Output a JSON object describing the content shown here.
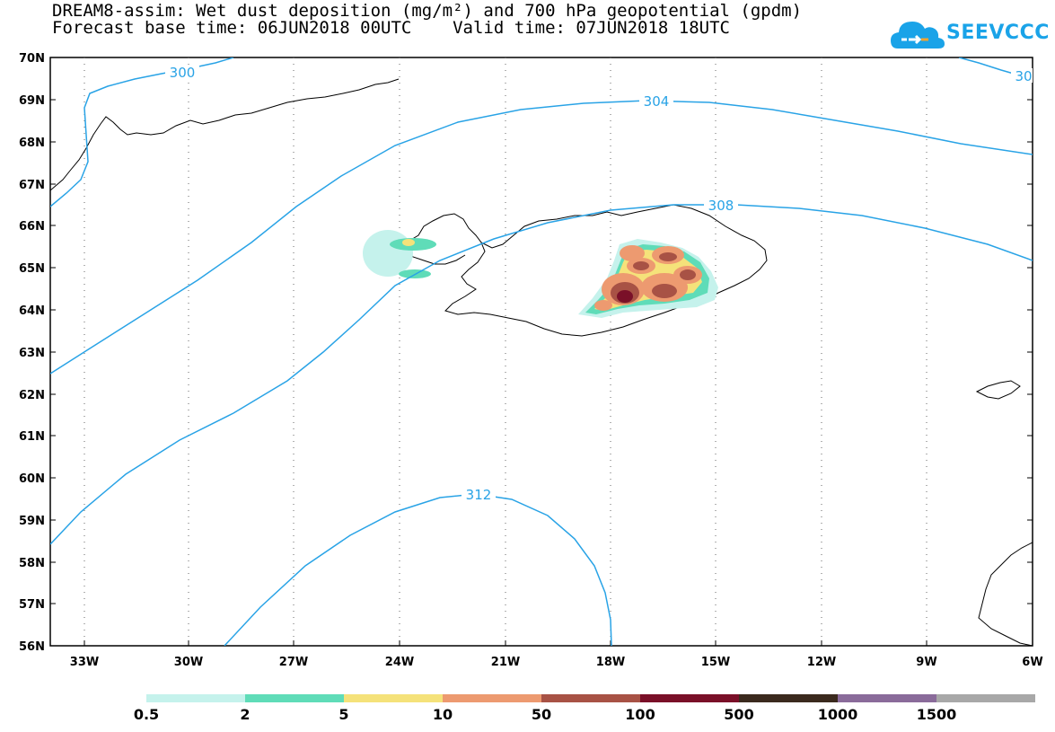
{
  "title": {
    "line1": "DREAM8-assim: Wet dust deposition (mg/m²) and 700 hPa geopotential (gpdm)",
    "line2": "Forecast base time: 06JUN2018 00UTC    Valid time: 07JUN2018 18UTC"
  },
  "logo": {
    "text": "SEEVCCC",
    "icon": "cloud-icon",
    "color": "#1aa3e8"
  },
  "axes": {
    "lat_labels": [
      "70N",
      "69N",
      "68N",
      "67N",
      "66N",
      "65N",
      "64N",
      "63N",
      "62N",
      "61N",
      "60N",
      "59N",
      "58N",
      "57N",
      "56N"
    ],
    "lon_labels": [
      "33W",
      "30W",
      "27W",
      "24W",
      "21W",
      "18W",
      "15W",
      "12W",
      "9W",
      "6W"
    ]
  },
  "contours": {
    "color": "#29a3e6",
    "labels": [
      "300",
      "304",
      "308",
      "312",
      "30"
    ]
  },
  "legend": {
    "labels": [
      "0.5",
      "2",
      "5",
      "10",
      "50",
      "100",
      "500",
      "1000",
      "1500"
    ],
    "colors": [
      "#c5f2ec",
      "#5fdcb8",
      "#f5e27a",
      "#ed9a70",
      "#a85245",
      "#7a1028",
      "#3b2a1e",
      "#8a6b9a",
      "#a8a8a8"
    ]
  }
}
